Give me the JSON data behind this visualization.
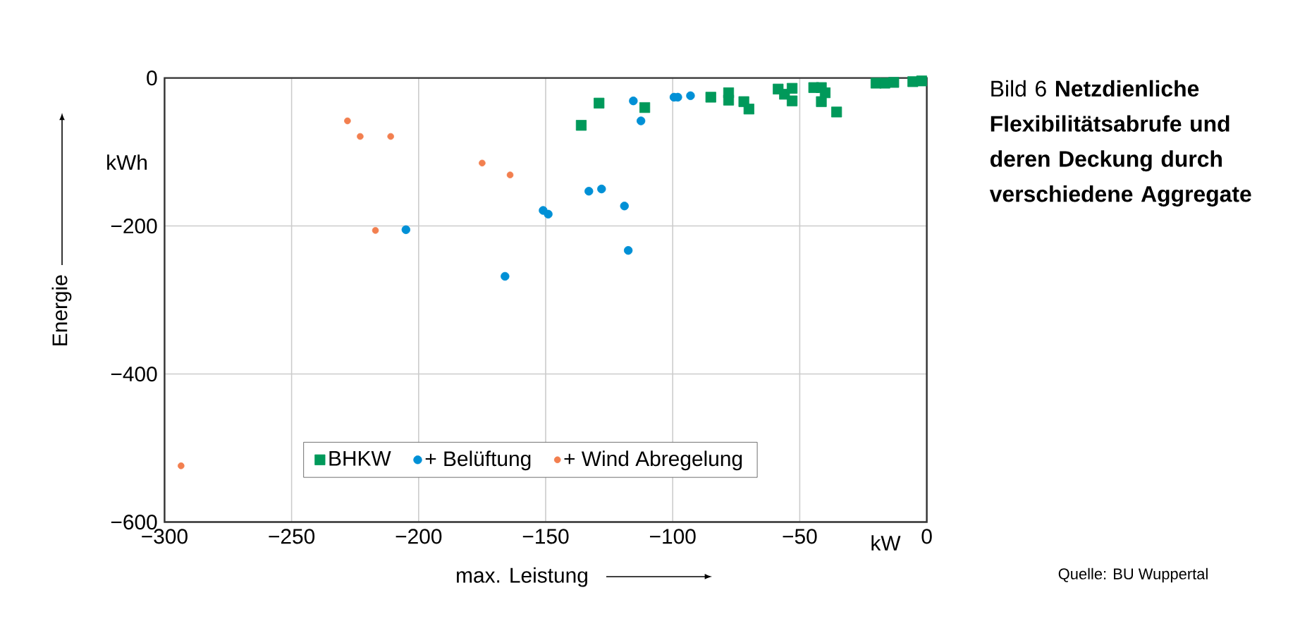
{
  "chart_data": {
    "type": "scatter",
    "title": "Bild 6 **Netzdienliche Flexibilitätsabrufe und deren Deckung durch verschiedene Aggregate**",
    "xlabel": "max. Leistung",
    "ylabel": "Energie",
    "annotations": [
      "kW",
      "kWh",
      "Quelle: BU Wuppertal"
    ],
    "xlim": [
      -300,
      0
    ],
    "ylim": [
      -600,
      0
    ],
    "xticks": [
      {
        "value": -300,
        "label": "−300"
      },
      {
        "value": -250,
        "label": "−250"
      },
      {
        "value": -200,
        "label": "−200"
      },
      {
        "value": -150,
        "label": "−150"
      },
      {
        "value": -100,
        "label": "−100"
      },
      {
        "value": -50,
        "label": "−50"
      },
      0
    ],
    "yticks": [
      {
        "value": -600,
        "label": "−600"
      },
      {
        "value": -400,
        "label": "−400"
      },
      {
        "value": -200,
        "label": "−200"
      },
      0
    ],
    "grid": true,
    "legend": "bottom",
    "series": [
      {
        "name": "BHKW",
        "color": "#00995a",
        "marker": "square",
        "x": [
          -136,
          -129,
          -111,
          -85,
          -78,
          -78,
          -72,
          -70,
          -58.5,
          -56,
          -53,
          -53,
          -44.5,
          -41.5,
          -40,
          -41.5,
          -35.5,
          -20,
          -16.5,
          -13,
          -5.5,
          -2
        ],
        "values": [
          -64,
          -34,
          -40,
          -26,
          -20,
          -30,
          -32,
          -42,
          -15,
          -22,
          -14,
          -31,
          -13,
          -13,
          -20,
          -32,
          -46,
          -7,
          -7,
          -6,
          -5,
          -4
        ]
      },
      {
        "name": "+ Belüftung",
        "color": "#0090d6",
        "marker": "circle",
        "x": [
          -205,
          -166,
          -151,
          -149,
          -133,
          -128,
          -119,
          -117.5,
          -115.5,
          -112.5,
          -99.5,
          -98,
          -93
        ],
        "values": [
          -205,
          -268,
          -179,
          -184,
          -153,
          -150,
          -173,
          -233,
          -31,
          -58,
          -26,
          -26,
          -24
        ]
      },
      {
        "name": "+ Wind Abregelung",
        "color": "#f27f4f",
        "marker": "circle",
        "x": [
          -293.5,
          -228,
          -223,
          -217,
          -211,
          -175,
          -164
        ],
        "values": [
          -524,
          -58,
          -79,
          -206,
          -79,
          -115,
          -131
        ]
      }
    ]
  }
}
